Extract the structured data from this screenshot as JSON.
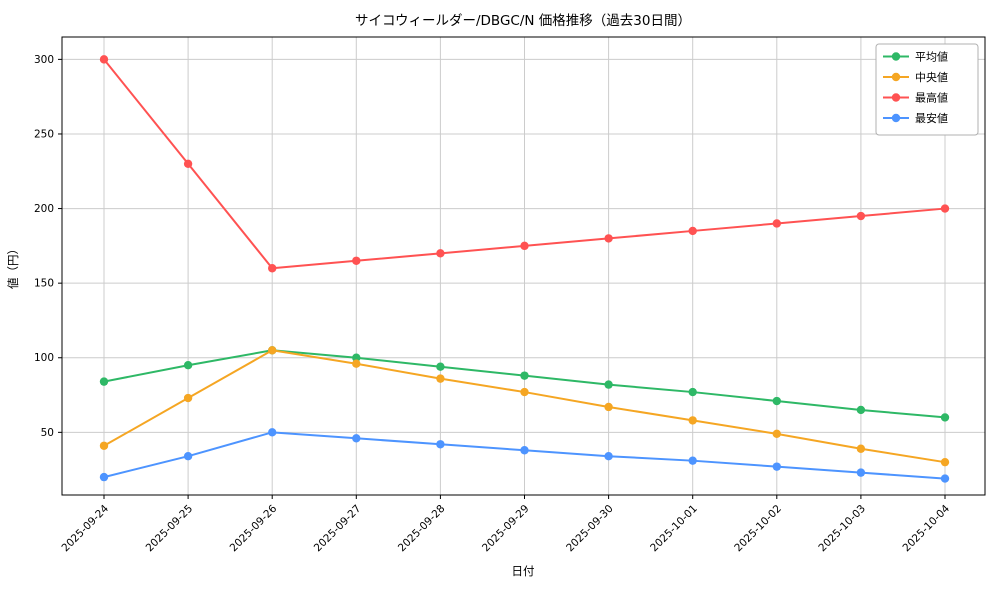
{
  "chart_data": {
    "type": "line",
    "title": "サイコウィールダー/DBGC/N 価格推移（過去30日間）",
    "xlabel": "日付",
    "ylabel": "値（円）",
    "categories": [
      "2025-09-24",
      "2025-09-25",
      "2025-09-26",
      "2025-09-27",
      "2025-09-28",
      "2025-09-29",
      "2025-09-30",
      "2025-10-01",
      "2025-10-02",
      "2025-10-03",
      "2025-10-04"
    ],
    "series": [
      {
        "id": "average",
        "name": "平均値",
        "color": "#2eb866",
        "values": [
          84,
          95,
          105,
          100,
          94,
          88,
          82,
          77,
          71,
          65,
          60
        ]
      },
      {
        "id": "median",
        "name": "中央値",
        "color": "#f5a623",
        "values": [
          41,
          73,
          105,
          96,
          86,
          77,
          67,
          58,
          49,
          39,
          30
        ]
      },
      {
        "id": "max",
        "name": "最高値",
        "color": "#ff5252",
        "values": [
          300,
          230,
          160,
          165,
          170,
          175,
          180,
          185,
          190,
          195,
          200
        ]
      },
      {
        "id": "min",
        "name": "最安値",
        "color": "#4d94ff",
        "values": [
          20,
          34,
          50,
          46,
          42,
          38,
          34,
          31,
          27,
          23,
          19
        ]
      }
    ],
    "yticks": [
      50,
      100,
      150,
      200,
      250,
      300
    ],
    "ylim": [
      8,
      315
    ],
    "grid": true,
    "legend_position": "upper right",
    "colors": {
      "grid": "#cccccc",
      "frame": "#000000",
      "legend_border": "#b0b0b0",
      "background": "#ffffff"
    }
  }
}
